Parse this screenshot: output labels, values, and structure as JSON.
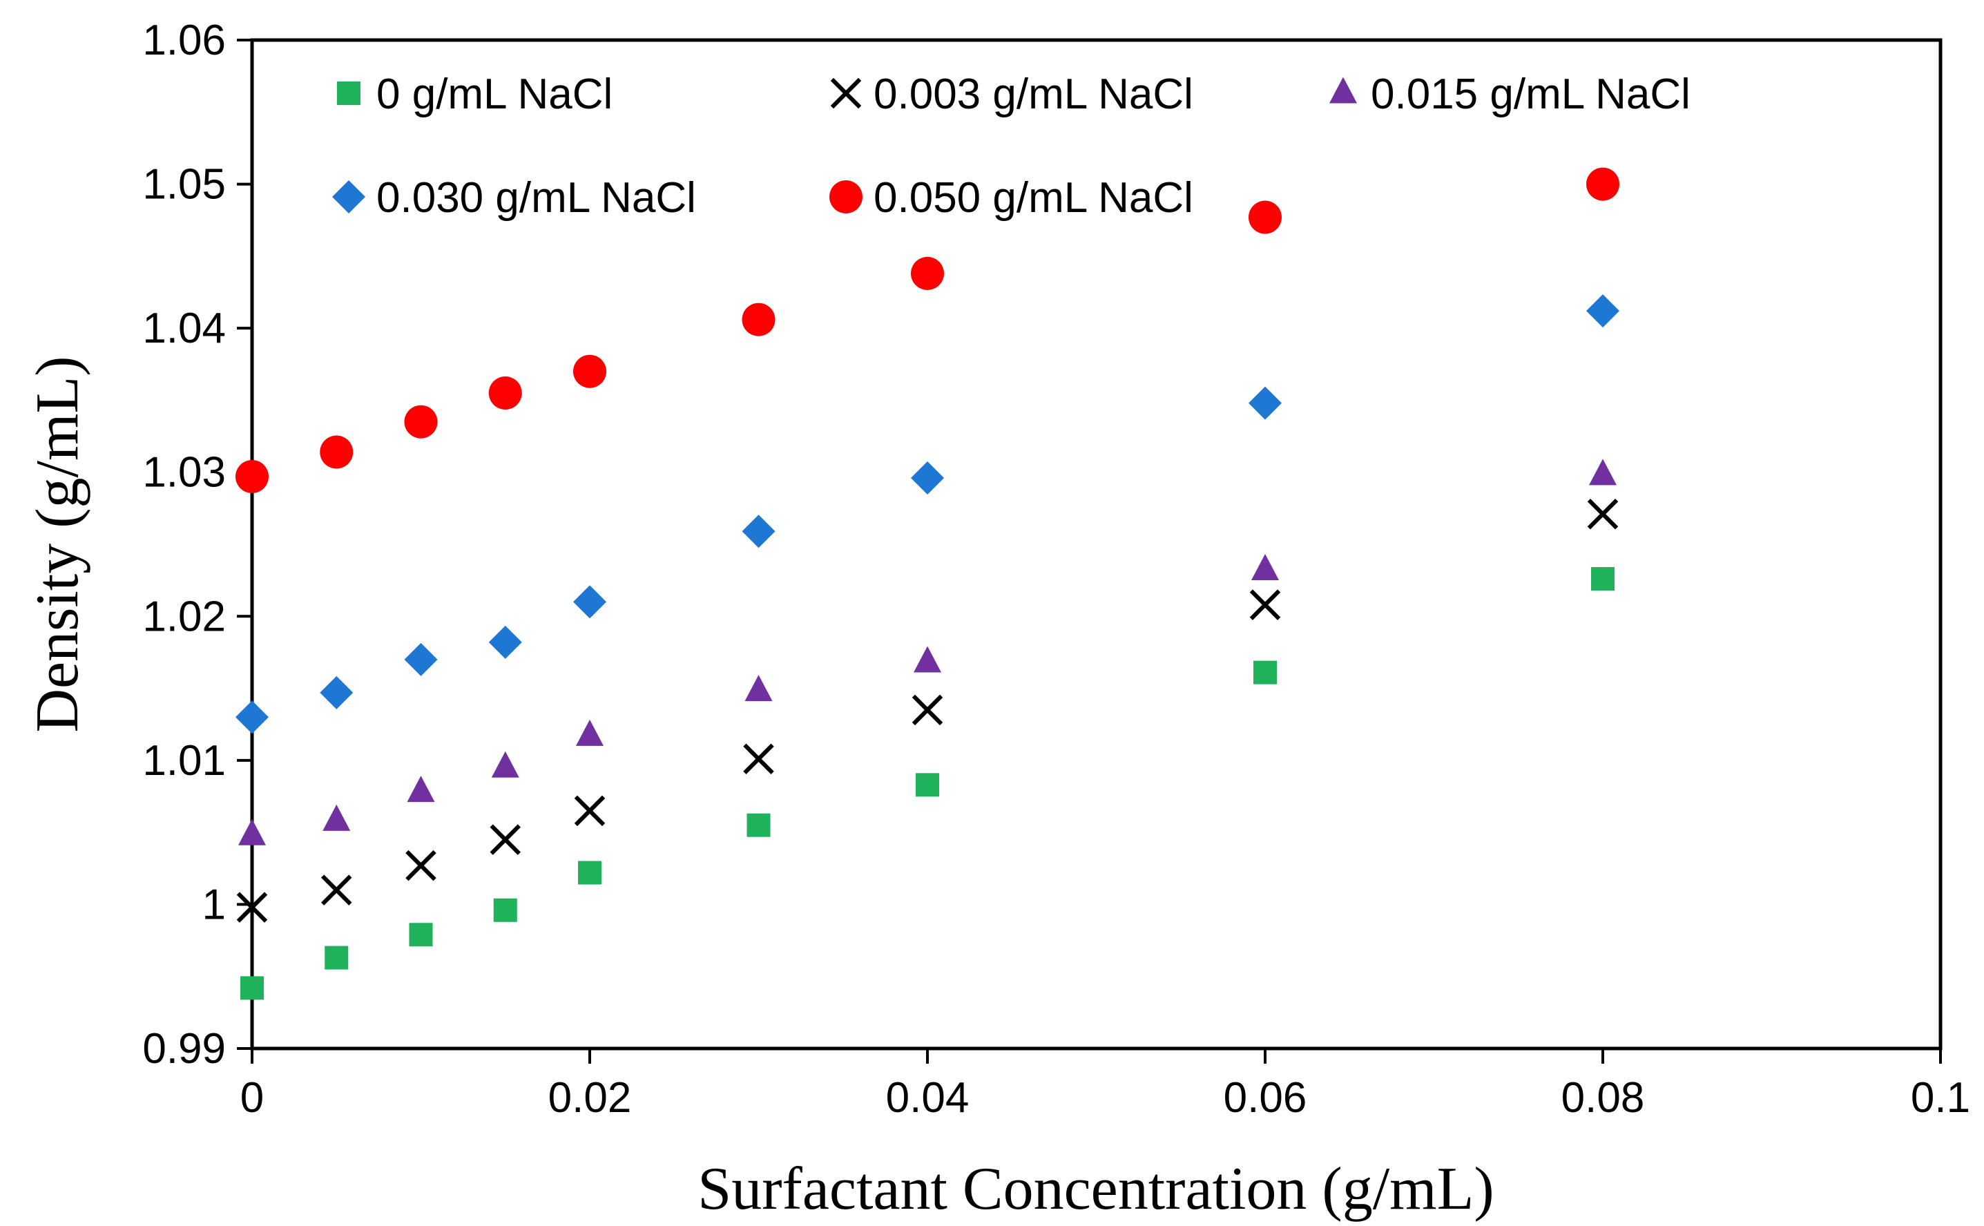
{
  "chart_data": {
    "type": "scatter",
    "title": "",
    "xlabel": "Surfactant Concentration (g/mL)",
    "ylabel": "Density (g/mL)",
    "xlim": [
      0,
      0.1
    ],
    "ylim": [
      0.99,
      1.06
    ],
    "x_ticks": [
      "0",
      "0.02",
      "0.04",
      "0.06",
      "0.08",
      "0.1"
    ],
    "y_ticks": [
      "0.99",
      "1",
      "1.01",
      "1.02",
      "1.03",
      "1.04",
      "1.05",
      "1.06"
    ],
    "grid": false,
    "legend_position": "top",
    "series": [
      {
        "name": "0 g/mL NaCl",
        "marker": "square",
        "color": "#1fb25a",
        "points": [
          [
            0,
            0.9942
          ],
          [
            0.005,
            0.9963
          ],
          [
            0.01,
            0.9979
          ],
          [
            0.015,
            0.9996
          ],
          [
            0.02,
            1.0022
          ],
          [
            0.03,
            1.0055
          ],
          [
            0.04,
            1.0083
          ],
          [
            0.06,
            1.0161
          ],
          [
            0.08,
            1.0226
          ]
        ]
      },
      {
        "name": "0.003 g/mL NaCl",
        "marker": "x",
        "color": "#000000",
        "points": [
          [
            0,
            0.9998
          ],
          [
            0.005,
            1.001
          ],
          [
            0.01,
            1.0027
          ],
          [
            0.015,
            1.0045
          ],
          [
            0.02,
            1.0065
          ],
          [
            0.03,
            1.0101
          ],
          [
            0.04,
            1.0135
          ],
          [
            0.06,
            1.0208
          ],
          [
            0.08,
            1.0271
          ]
        ]
      },
      {
        "name": "0.015 g/mL NaCl",
        "marker": "triangle",
        "color": "#7030a0",
        "points": [
          [
            0,
            1.0048
          ],
          [
            0.005,
            1.0058
          ],
          [
            0.01,
            1.0078
          ],
          [
            0.015,
            1.0095
          ],
          [
            0.02,
            1.0117
          ],
          [
            0.03,
            1.0148
          ],
          [
            0.04,
            1.0168
          ],
          [
            0.06,
            1.0232
          ],
          [
            0.08,
            1.0298
          ]
        ]
      },
      {
        "name": "0.030 g/mL NaCl",
        "marker": "diamond",
        "color": "#1f77d4",
        "points": [
          [
            0,
            1.013
          ],
          [
            0.005,
            1.0147
          ],
          [
            0.01,
            1.017
          ],
          [
            0.015,
            1.0182
          ],
          [
            0.02,
            1.021
          ],
          [
            0.03,
            1.0259
          ],
          [
            0.04,
            1.0296
          ],
          [
            0.06,
            1.0348
          ],
          [
            0.08,
            1.0412
          ]
        ]
      },
      {
        "name": "0.050 g/mL NaCl",
        "marker": "circle",
        "color": "#ff0000",
        "points": [
          [
            0,
            1.0297
          ],
          [
            0.005,
            1.0314
          ],
          [
            0.01,
            1.0335
          ],
          [
            0.015,
            1.0355
          ],
          [
            0.02,
            1.037
          ],
          [
            0.03,
            1.0406
          ],
          [
            0.04,
            1.0438
          ],
          [
            0.06,
            1.0477
          ],
          [
            0.08,
            1.05
          ]
        ]
      }
    ]
  }
}
